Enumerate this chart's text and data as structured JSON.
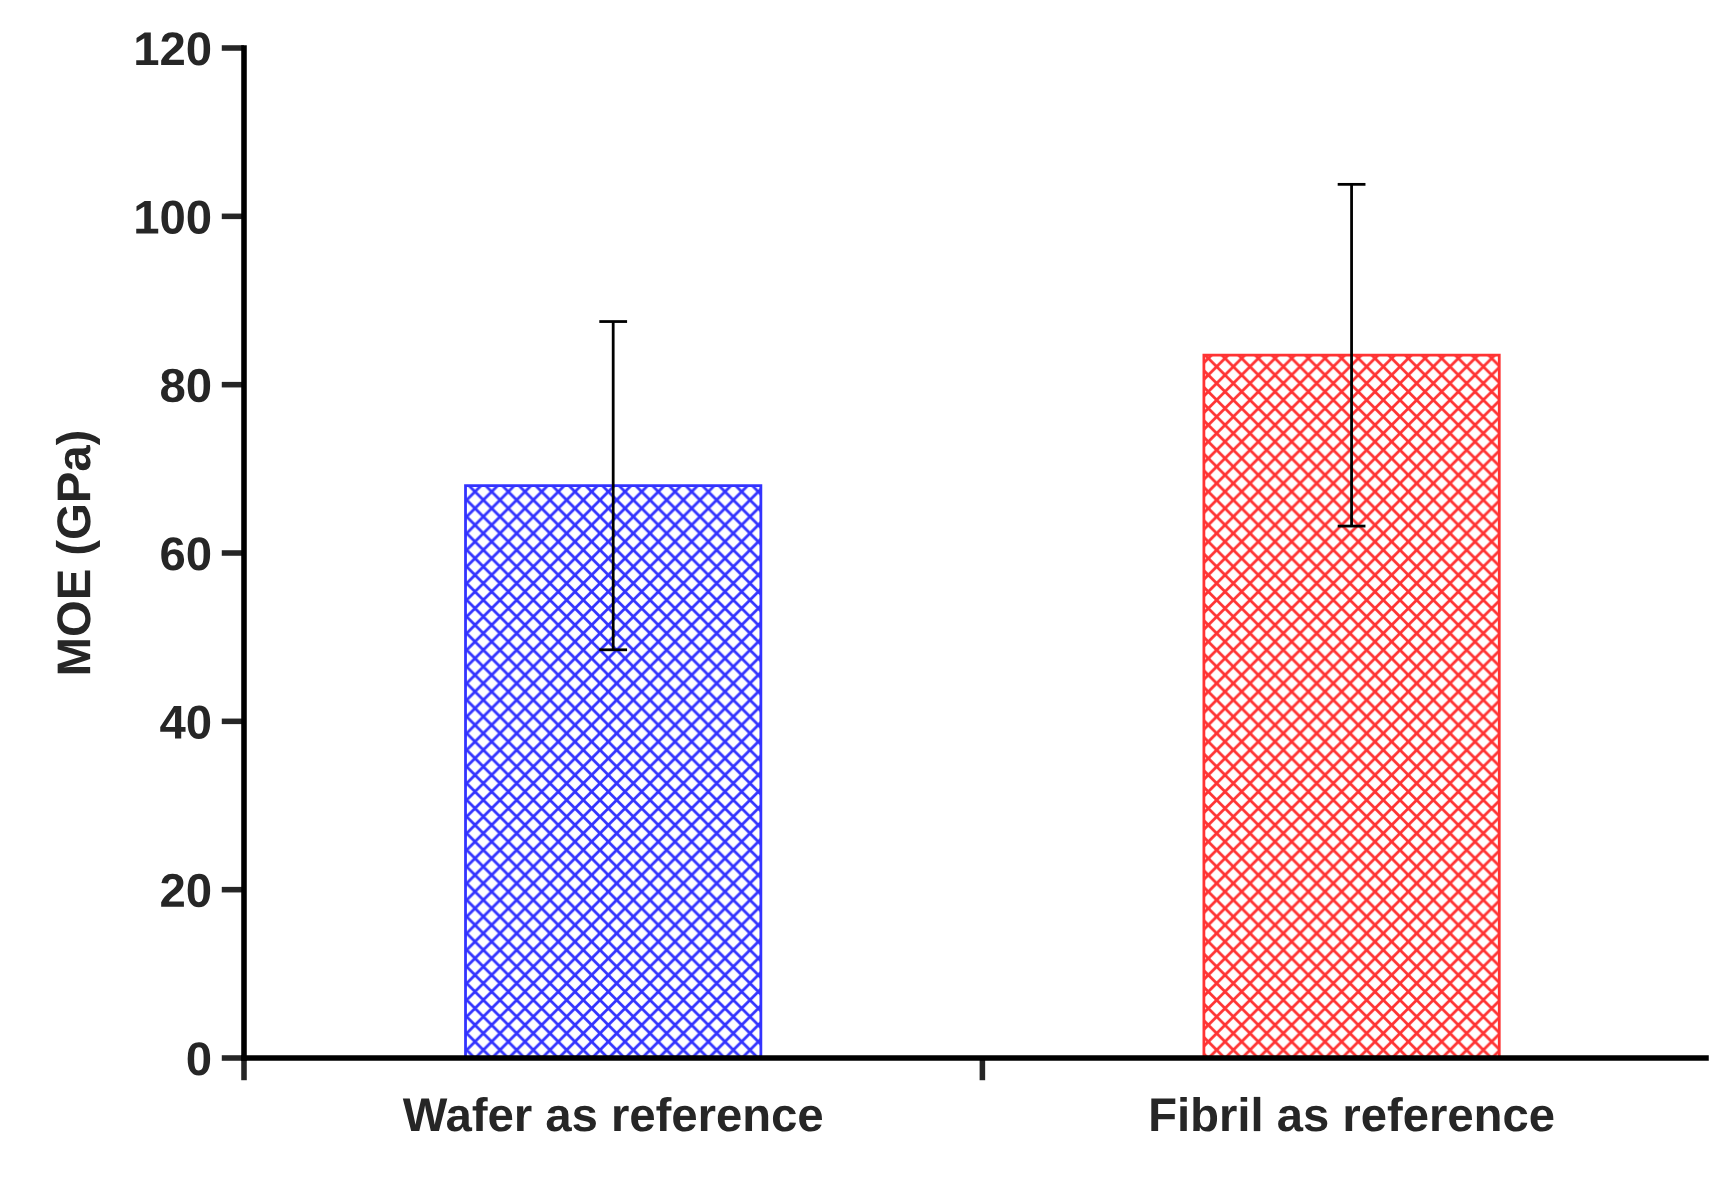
{
  "chart_data": {
    "type": "bar",
    "ylabel": "MOE (GPa)",
    "categories": [
      "Wafer as reference",
      "Fibril as reference"
    ],
    "values": [
      68,
      83.5
    ],
    "errors": [
      19.5,
      20.3
    ],
    "colors": [
      "#3333ff",
      "#ff3333"
    ],
    "ylim": [
      0,
      120
    ],
    "yticks": [
      0,
      20,
      40,
      60,
      80,
      100,
      120
    ],
    "grid": false,
    "legend": false
  }
}
